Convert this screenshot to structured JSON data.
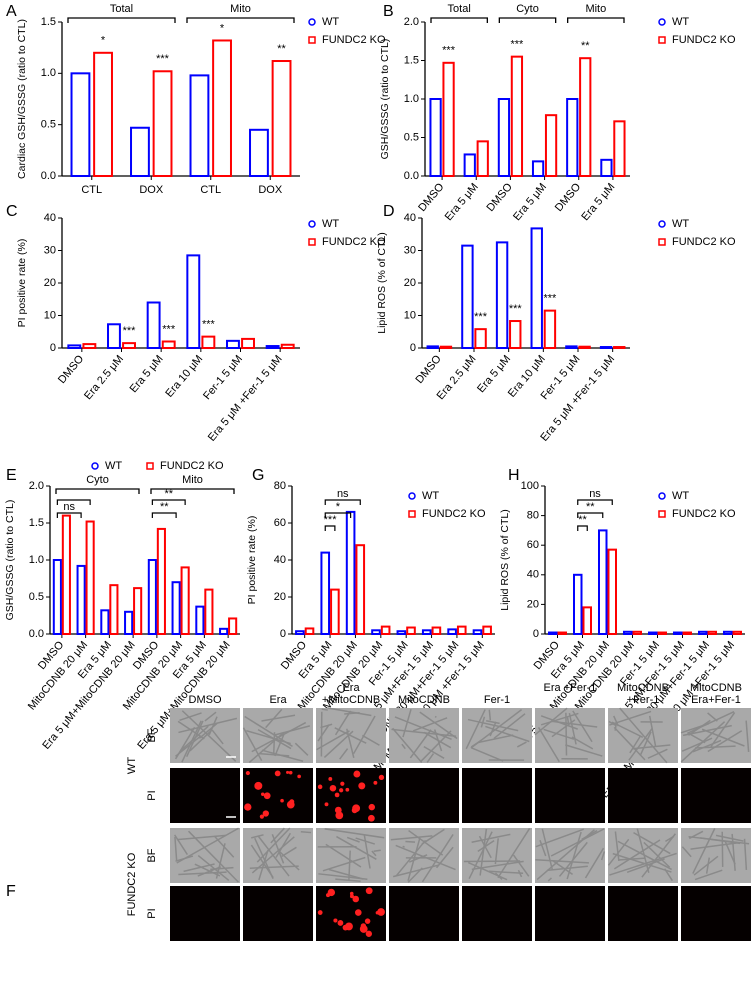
{
  "chart_data": [
    {
      "type": "bar",
      "panel": "A",
      "y_label": "Cardiac GSH/GSSG (ratio to CTL)",
      "categories": [
        "CTL",
        "DOX",
        "CTL",
        "DOX"
      ],
      "series": [
        {
          "name": "WT",
          "color": "#0000ff",
          "values": [
            1.0,
            0.47,
            0.98,
            0.45
          ]
        },
        {
          "name": "FUNDC2 KO",
          "color": "#ff0000",
          "values": [
            1.2,
            1.02,
            1.32,
            1.12
          ],
          "significance": [
            "*",
            "***",
            "*",
            "**"
          ]
        }
      ],
      "groups": [
        {
          "label": "Total",
          "from": 0,
          "to": 1
        },
        {
          "label": "Mito",
          "from": 2,
          "to": 3
        }
      ],
      "ylim": [
        0,
        1.5
      ],
      "yticks": [
        {
          "value": 0,
          "label": "0.0"
        },
        0.5,
        {
          "value": 1,
          "label": "1.0"
        },
        1.5
      ]
    },
    {
      "type": "bar",
      "panel": "B",
      "y_label": "GSH/GSSG (ratio to CTL)",
      "categories": [
        "DMSO",
        "Era 5 μM",
        "DMSO",
        "Era 5 μM",
        "DMSO",
        "Era 5 μM"
      ],
      "series": [
        {
          "name": "WT",
          "color": "#0000ff",
          "values": [
            1.0,
            0.28,
            1.0,
            0.19,
            1.0,
            0.21
          ]
        },
        {
          "name": "FUNDC2 KO",
          "color": "#ff0000",
          "values": [
            1.47,
            0.45,
            1.55,
            0.79,
            1.53,
            0.71
          ],
          "significance": [
            "***",
            null,
            "***",
            null,
            "**",
            null
          ]
        }
      ],
      "groups": [
        {
          "label": "Total",
          "from": 0,
          "to": 1
        },
        {
          "label": "Cyto",
          "from": 2,
          "to": 3
        },
        {
          "label": "Mito",
          "from": 4,
          "to": 5
        }
      ],
      "ylim": [
        0,
        2
      ],
      "yticks": [
        {
          "value": 0,
          "label": "0.0"
        },
        0.5,
        {
          "value": 1,
          "label": "1.0"
        },
        1.5,
        {
          "value": 2,
          "label": "2.0"
        }
      ]
    },
    {
      "type": "bar",
      "panel": "C",
      "y_label": "PI positive rate (%)",
      "categories": [
        "DMSO",
        "Era 2.5 μM",
        "Era 5 μM",
        "Era 10 μM",
        "Fer-1 5 μM",
        "Era 5 μM +Fer-1 5 μM"
      ],
      "series": [
        {
          "name": "WT",
          "color": "#0000ff",
          "values": [
            0.8,
            7.3,
            14,
            28.5,
            2.2,
            0.6
          ]
        },
        {
          "name": "FUNDC2 KO",
          "color": "#ff0000",
          "values": [
            1.2,
            1.5,
            2.0,
            3.5,
            2.8,
            1.0
          ],
          "significance": [
            null,
            "***",
            "***",
            "***",
            null,
            null
          ]
        }
      ],
      "ylim": [
        0,
        40
      ],
      "yticks": [
        0,
        10,
        20,
        30,
        40
      ]
    },
    {
      "type": "bar",
      "panel": "D",
      "y_label": "Lipid ROS (% of CTL)",
      "categories": [
        "DMSO",
        "Era 2.5 μM",
        "Era 5 μM",
        "Era 10 μM",
        "Fer-1 5 μM",
        "Era 5 μM +Fer-1 5 μM"
      ],
      "series": [
        {
          "name": "WT",
          "color": "#0000ff",
          "values": [
            0.5,
            31.5,
            32.5,
            36.8,
            0.5,
            0.3
          ]
        },
        {
          "name": "FUNDC2 KO",
          "color": "#ff0000",
          "values": [
            0.4,
            5.8,
            8.3,
            11.5,
            0.4,
            0.3
          ],
          "significance": [
            null,
            "***",
            "***",
            "***",
            null,
            null
          ]
        }
      ],
      "ylim": [
        0,
        40
      ],
      "yticks": [
        0,
        10,
        20,
        30,
        40
      ]
    },
    {
      "type": "bar",
      "panel": "E",
      "y_label": "GSH/GSSG (ratio to CTL)",
      "categories": [
        "DMSO",
        "MitoCDNB 20 μM",
        "Era 5 μM",
        "Era 5 μM+MitoCDNB 20 μM",
        "DMSO",
        "MitoCDNB 20 μM",
        "Era 5 μM",
        "Era 5 μM+MitoCDNB 20 μM"
      ],
      "series": [
        {
          "name": "WT",
          "color": "#0000ff",
          "values": [
            1.0,
            0.92,
            0.32,
            0.3,
            1.0,
            0.7,
            0.37,
            0.07
          ]
        },
        {
          "name": "FUNDC2 KO",
          "color": "#ff0000",
          "values": [
            1.6,
            1.52,
            0.66,
            0.62,
            1.42,
            0.9,
            0.6,
            0.21
          ]
        }
      ],
      "groups": [
        {
          "label": "Cyto",
          "from": 0,
          "to": 3
        },
        {
          "label": "Mito",
          "from": 4,
          "to": 7
        }
      ],
      "comparisons": [
        {
          "from": [
            0,
            0
          ],
          "to": [
            1,
            1
          ]
        },
        {
          "from": [
            0,
            0
          ],
          "to": [
            1,
            0
          ],
          "label": "ns"
        },
        {
          "from": [
            4,
            0
          ],
          "to": [
            5,
            1
          ],
          "label": "**"
        },
        {
          "from": [
            4,
            0
          ],
          "to": [
            5,
            0
          ],
          "label": "**"
        }
      ],
      "ylim": [
        0,
        2
      ],
      "yticks": [
        {
          "value": 0,
          "label": "0.0"
        },
        0.5,
        {
          "value": 1,
          "label": "1.0"
        },
        1.5,
        {
          "value": 2,
          "label": "2.0"
        }
      ]
    },
    {
      "type": "bar",
      "panel": "G",
      "y_label": "PI positive rate (%)",
      "categories": [
        "DMSO",
        "Era 5 μM",
        "Era 5 μM+MitoCDNB 20 μM",
        "MitoCDNB 20 μM",
        "Fer-1 5 μM",
        "Era 5 μM+Fer-1 5 μM",
        "MitoCDNB 20 μM+Fer-1 5 μM",
        "Era 5 μM+MitoCDNB 20 μM +Fer-1 5 μM"
      ],
      "series": [
        {
          "name": "WT",
          "color": "#0000ff",
          "values": [
            1.5,
            44,
            66,
            2,
            1.5,
            2,
            2.5,
            2
          ]
        },
        {
          "name": "FUNDC2 KO",
          "color": "#ff0000",
          "values": [
            3,
            24,
            48,
            4,
            3.5,
            3.5,
            4,
            4
          ]
        }
      ],
      "comparisons": [
        {
          "from": [
            1,
            0
          ],
          "to": [
            2,
            1
          ],
          "label": "ns"
        },
        {
          "from": [
            1,
            0
          ],
          "to": [
            2,
            0
          ],
          "label": "*"
        },
        {
          "from": [
            1,
            0
          ],
          "to": [
            1,
            1
          ],
          "label": "***"
        }
      ],
      "ylim": [
        0,
        80
      ],
      "yticks": [
        0,
        20,
        40,
        60,
        80
      ]
    },
    {
      "type": "bar",
      "panel": "H",
      "y_label": "Lipid ROS (% of CTL)",
      "categories": [
        "DMSO",
        "Era 5 μM",
        "Era 5 μM+MitoCDNB 20 μM",
        "MitoCDNB 20 μM",
        "Fer-1 5 μM",
        "Era 5 μM+Fer-1 5 μM",
        "MitoCDNB 20 μM+Fer-1 5 μM",
        "Era 5 μM+MitoCDNB 20 μM +Fer-1 5 μM"
      ],
      "series": [
        {
          "name": "WT",
          "color": "#0000ff",
          "values": [
            1,
            40,
            70,
            1.5,
            1,
            1,
            1.5,
            1.5
          ]
        },
        {
          "name": "FUNDC2 KO",
          "color": "#ff0000",
          "values": [
            1,
            18,
            57,
            1.5,
            1,
            1,
            1.5,
            1.5
          ]
        }
      ],
      "comparisons": [
        {
          "from": [
            1,
            0
          ],
          "to": [
            2,
            1
          ],
          "label": "ns"
        },
        {
          "from": [
            1,
            0
          ],
          "to": [
            2,
            0
          ],
          "label": "**"
        },
        {
          "from": [
            1,
            0
          ],
          "to": [
            1,
            1
          ],
          "label": "**"
        }
      ],
      "ylim": [
        0,
        100
      ],
      "yticks": [
        0,
        20,
        40,
        60,
        80,
        100
      ]
    }
  ],
  "figure_f": {
    "panel": "F",
    "columns": [
      "DMSO",
      "Era",
      "Era +MitoCDNB",
      "MitoCDNB",
      "Fer-1",
      "Era +Fer-1",
      "MitoCDNB +Fer-1",
      "MitoCDNB Era+Fer-1"
    ],
    "genotypes": [
      "WT",
      "FUNDC2 KO"
    ],
    "rows": [
      "BF",
      "PI",
      "BF",
      "PI"
    ]
  }
}
